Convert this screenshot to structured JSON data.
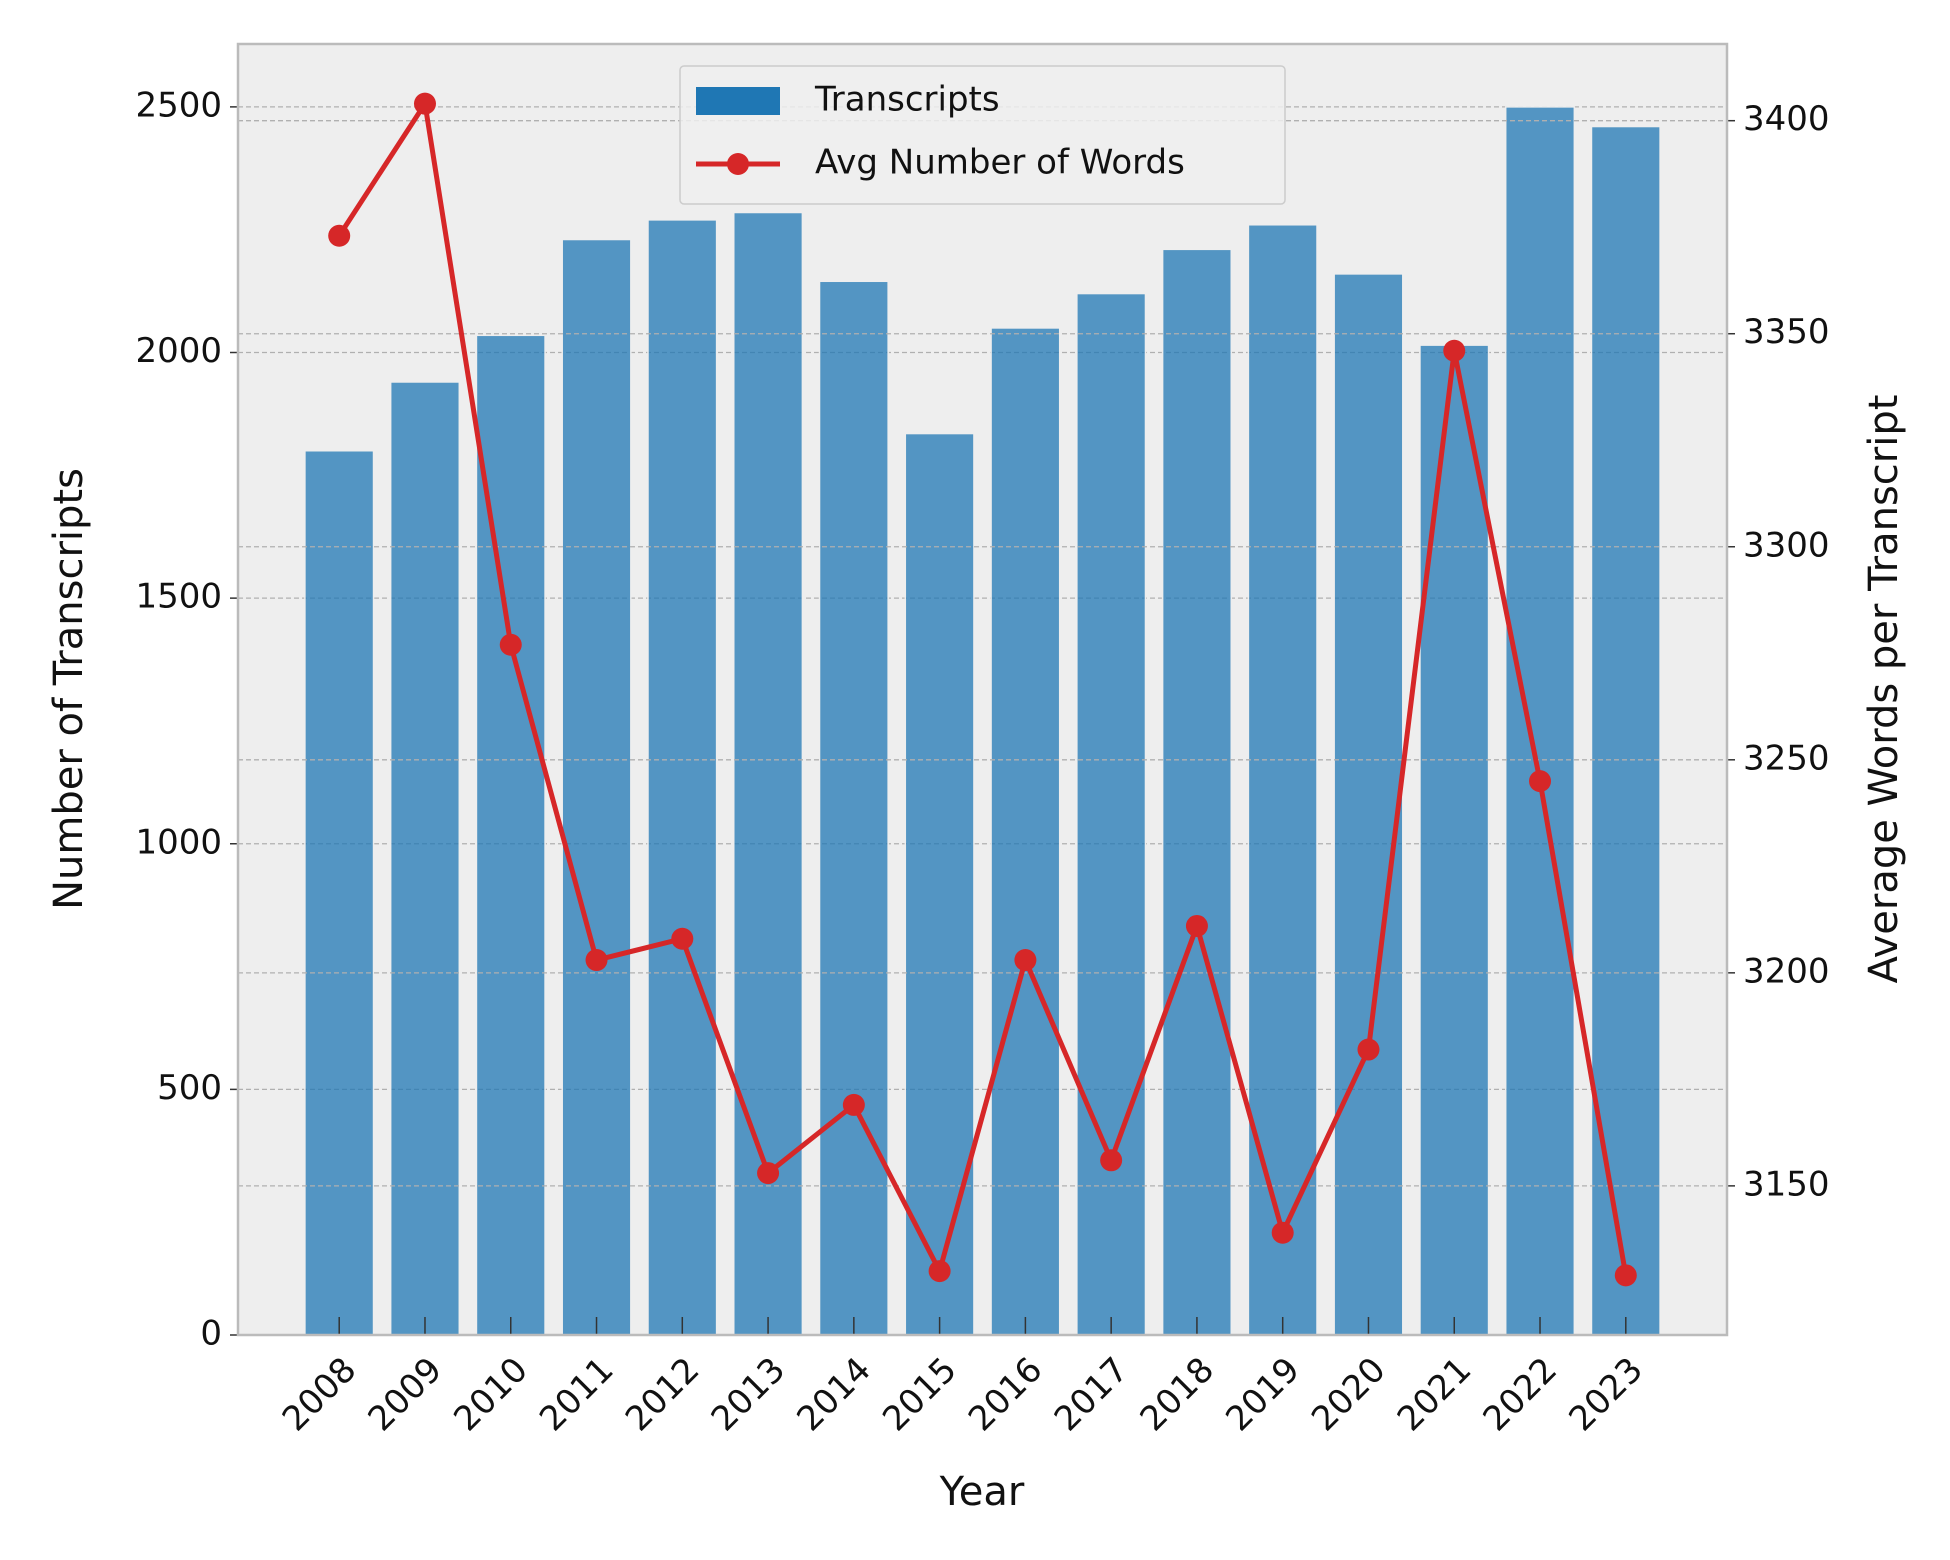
{
  "chart_data": {
    "type": "bar",
    "xlabel": "Year",
    "ylabel": "Number of Transcripts",
    "y2label": "Average Words per Transcript",
    "categories": [
      "2008",
      "2009",
      "2010",
      "2011",
      "2012",
      "2013",
      "2014",
      "2015",
      "2016",
      "2017",
      "2018",
      "2019",
      "2020",
      "2021",
      "2022",
      "2023"
    ],
    "series": [
      {
        "name": "Transcripts",
        "type": "bar",
        "color": "#1f77b4",
        "values": [
          1800,
          1940,
          2035,
          2230,
          2270,
          2285,
          2145,
          1835,
          2050,
          2120,
          2210,
          2260,
          2160,
          2015,
          2500,
          2460
        ]
      },
      {
        "name": "Avg Number of Words",
        "type": "line",
        "color": "#d62728",
        "axis": "y2",
        "values": [
          3373,
          3404,
          3277,
          3203,
          3208,
          3153,
          3169,
          3130,
          3203,
          3156,
          3211,
          3139,
          3182,
          3346,
          3245,
          3129
        ]
      }
    ],
    "ylim": [
      0,
      2628
    ],
    "yticks": [
      0,
      500,
      1000,
      1500,
      2000,
      2500
    ],
    "y2lim": [
      3115,
      3418
    ],
    "y2ticks": [
      3150,
      3200,
      3250,
      3300,
      3350,
      3400
    ],
    "grid": true,
    "legend": "upper center"
  }
}
